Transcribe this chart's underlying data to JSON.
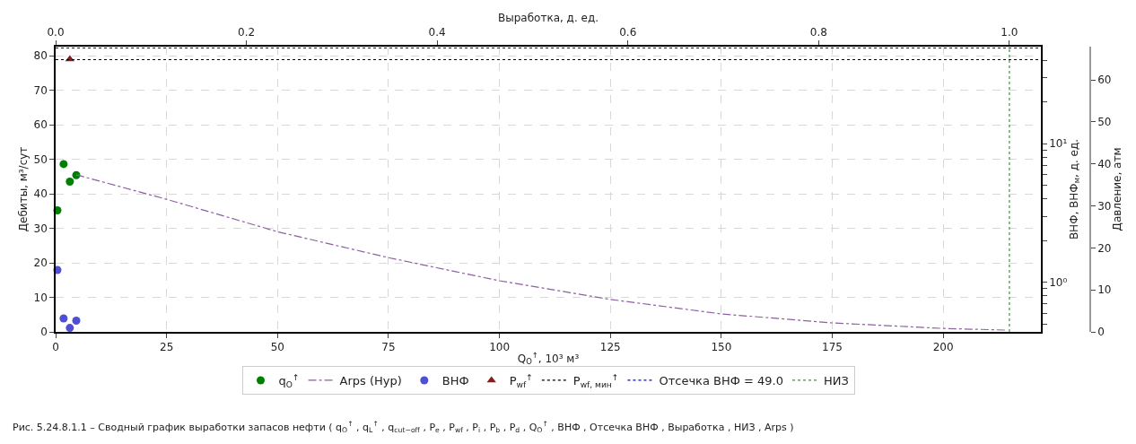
{
  "chart_data": {
    "type": "scatter",
    "x2label": "Выработка, д. ед.",
    "xlabel": "Q$_{O}$$^{↑}$, 10³ м³",
    "ylabel": "Дебиты, м³/сут",
    "y2label": "ВНФ, ВНФ$_{м}$, д. ед.",
    "y3label": "Давление, атм",
    "xlim": [
      0,
      222
    ],
    "xticks": [
      0,
      25,
      50,
      75,
      100,
      125,
      150,
      175,
      200
    ],
    "x2lim": [
      0,
      1.033
    ],
    "x2ticks": [
      {
        "value": 0,
        "label": "0.0"
      },
      {
        "value": 0.2,
        "label": "0.2"
      },
      {
        "value": 0.4,
        "label": "0.4"
      },
      {
        "value": 0.6,
        "label": "0.6"
      },
      {
        "value": 0.8,
        "label": "0.8"
      },
      {
        "value": 1,
        "label": "1.0"
      }
    ],
    "ylim": [
      0,
      82.6
    ],
    "yticks": [
      0,
      10,
      20,
      30,
      40,
      50,
      60,
      70,
      80
    ],
    "y2lim": [
      0.44,
      50.1
    ],
    "y2ticks": [
      {
        "value": 0.5,
        "label": null
      },
      {
        "value": 0.6,
        "label": null
      },
      {
        "value": 0.7,
        "label": null
      },
      {
        "value": 0.8,
        "label": null
      },
      {
        "value": 0.9,
        "label": null
      },
      {
        "value": 1,
        "label": "10⁰"
      },
      {
        "value": 2,
        "label": null
      },
      {
        "value": 3,
        "label": null
      },
      {
        "value": 4,
        "label": null
      },
      {
        "value": 5,
        "label": null
      },
      {
        "value": 6,
        "label": null
      },
      {
        "value": 7,
        "label": null
      },
      {
        "value": 8,
        "label": null
      },
      {
        "value": 9,
        "label": null
      },
      {
        "value": 10,
        "label": "10¹"
      },
      {
        "value": 20,
        "label": null
      },
      {
        "value": 30,
        "label": null
      },
      {
        "value": 40,
        "label": null
      }
    ],
    "y3lim": [
      0,
      67.9
    ],
    "y3ticks": [
      0,
      10,
      20,
      30,
      40,
      50,
      60
    ],
    "log": "y2",
    "grid": true,
    "legend": "bottom",
    "series": [
      {
        "name": "q$_{O}$$^{↑}$",
        "marker": "circle",
        "color": "#008000",
        "x": [
          0.4,
          1.8,
          3.2,
          4.65
        ],
        "values": [
          35.2,
          48.6,
          43.5,
          45.4
        ]
      },
      {
        "name": "Arps (Hyp)",
        "type": "line",
        "marker": "none",
        "line_style": "dashdot",
        "color": "#8e5ea2",
        "x": [
          4.65,
          25,
          50,
          75,
          100,
          125,
          150,
          175,
          200,
          214.5
        ],
        "values": [
          45.5,
          38.4,
          29.0,
          21.5,
          14.8,
          9.4,
          5.2,
          2.6,
          1.0,
          0.5
        ]
      },
      {
        "name": "ВНФ",
        "marker": "circle",
        "axis": "y2",
        "color": "#4f4fd6",
        "x": [
          0.4,
          1.8,
          3.2,
          4.65
        ],
        "values": [
          1.23,
          0.55,
          0.47,
          0.53
        ]
      },
      {
        "name": "P$_{wf}$$^{↑}$",
        "marker": "triangle",
        "axis": "y3",
        "color": "#8b1a1a",
        "x": [
          3.2
        ],
        "values": [
          64.9
        ]
      }
    ],
    "ref_lines": [
      {
        "axis": "y3",
        "value": 64.8,
        "label": "P$_{wf, мин}$$^{↑}$",
        "color": "#000000",
        "line_style": "dotted"
      },
      {
        "axis": "y2",
        "value": 49.0,
        "label": "Отсечка ВНФ = 49.0",
        "color": "#0000ff",
        "line_style": "dotted"
      },
      {
        "axis": "x2",
        "value": 1.0,
        "label": "НИЗ",
        "color": "#2ca02c",
        "line_style": "dotted"
      }
    ],
    "annotations": [
      "Рис. 5.24.8.1.1 – Сводный график выработки запасов нефти ( q$_{O}$$^{↑}$ , q$_{L}$$^{↑}$ , q$_{cut−off}$ , P$_{e}$ , P$_{wf}$ , P$_{i}$ , P$_{b}$ , P$_{d}$ , Q$_{O}$$^{↑}$ , ВНФ , Отсечка ВНФ , Выработка , НИЗ , Arps )"
    ]
  }
}
